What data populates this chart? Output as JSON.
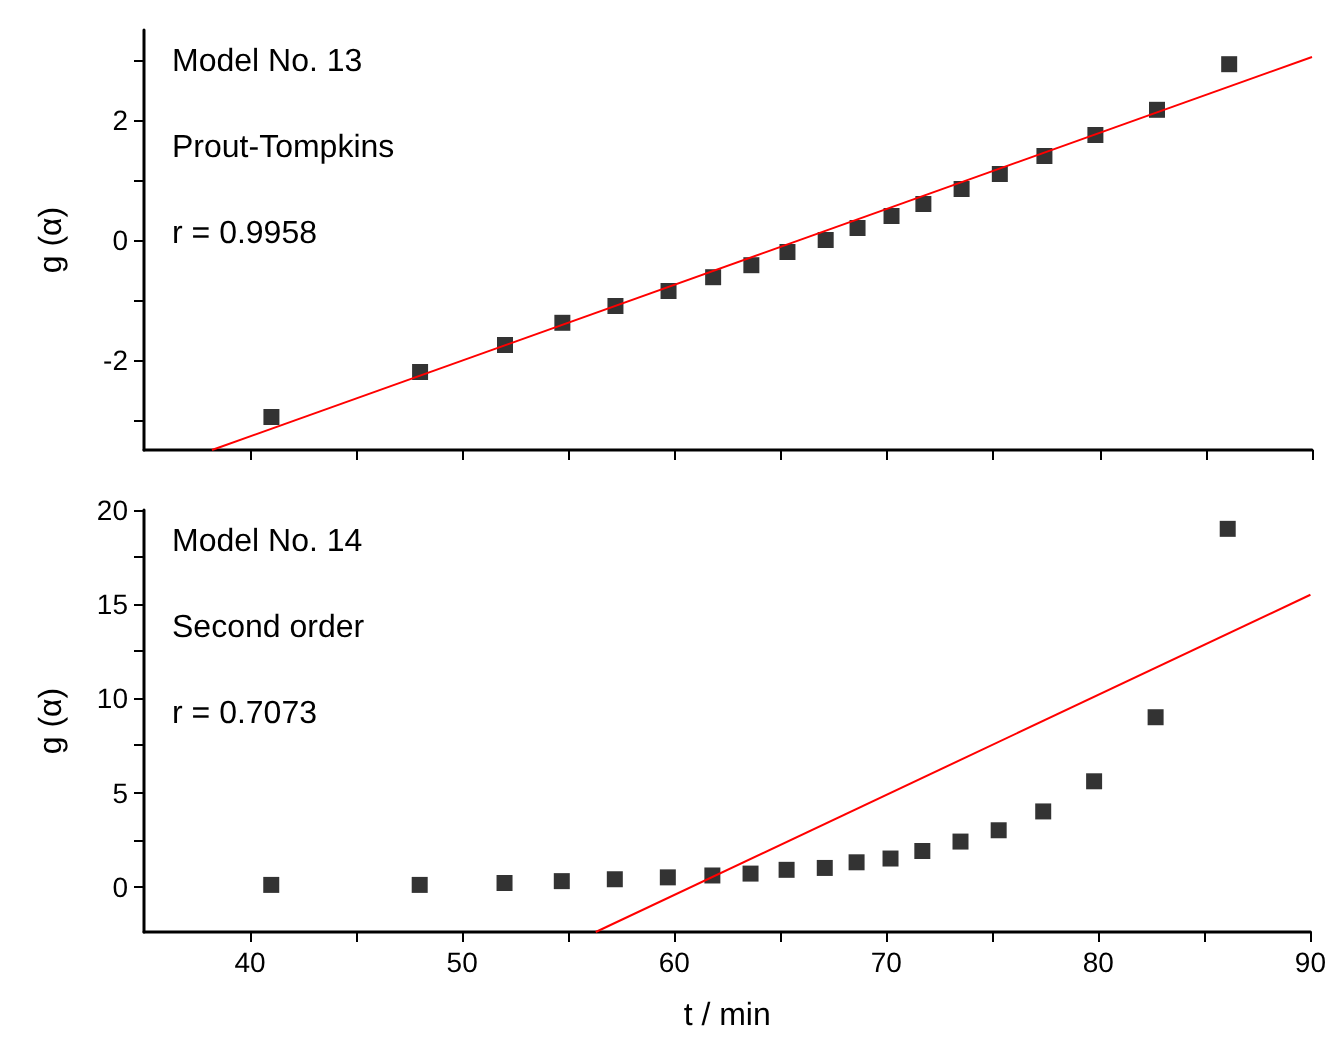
{
  "chart_data": [
    {
      "type": "scatter",
      "ylabel": "g (α)",
      "annotations": [
        "Model No. 13",
        "Prout-Tompkins",
        "r = 0.9958"
      ],
      "marker": "square",
      "tick_labels": "y",
      "xlim": [
        35,
        90
      ],
      "xticks": [
        40,
        {
          "value": 45,
          "label": null
        },
        50,
        {
          "value": 55,
          "label": null
        },
        60,
        {
          "value": 65,
          "label": null
        },
        70,
        {
          "value": 75,
          "label": null
        },
        80,
        {
          "value": 85,
          "label": null
        },
        90
      ],
      "ylim": [
        -3.5,
        3.5
      ],
      "yticks": [
        {
          "value": -3,
          "label": null
        },
        -2,
        {
          "value": -1,
          "label": null
        },
        0,
        {
          "value": 1,
          "label": null
        },
        2,
        {
          "value": 3,
          "label": null
        }
      ],
      "x": [
        41,
        48,
        52,
        54.7,
        57.2,
        59.7,
        61.8,
        63.6,
        65.3,
        67.1,
        68.6,
        70.2,
        71.7,
        73.5,
        75.3,
        77.4,
        79.8,
        82.7,
        86.1
      ],
      "series": [
        {
          "color": "#000000",
          "values": [
            -2.95,
            -2.2,
            -1.75,
            -1.38,
            -1.1,
            -0.85,
            -0.62,
            -0.42,
            -0.2,
            0,
            0.2,
            0.4,
            0.6,
            0.85,
            1.1,
            1.4,
            1.75,
            2.17,
            2.93
          ]
        },
        {
          "type": "line",
          "marker": "none",
          "color": "#ff0000",
          "x": [
            38.2,
            90
          ],
          "values": [
            -3.5,
            3.05
          ]
        }
      ]
    },
    {
      "type": "scatter",
      "xlabel": "t / min",
      "ylabel": "g (α)",
      "annotations": [
        "Model No. 14",
        "Second order",
        "r = 0.7073"
      ],
      "marker": "square",
      "xlim": [
        35,
        90
      ],
      "xticks": [
        40,
        {
          "value": 45,
          "label": null
        },
        50,
        {
          "value": 55,
          "label": null
        },
        60,
        {
          "value": 65,
          "label": null
        },
        70,
        {
          "value": 75,
          "label": null
        },
        80,
        {
          "value": 85,
          "label": null
        },
        90
      ],
      "ylim": [
        -2.4,
        20
      ],
      "yticks": [
        0,
        {
          "value": 2.5,
          "label": null
        },
        5,
        {
          "value": 7.5,
          "label": null
        },
        10,
        {
          "value": 12.5,
          "label": null
        },
        15,
        {
          "value": 17.5,
          "label": null
        },
        20
      ],
      "x": [
        41,
        48,
        52,
        54.7,
        57.2,
        59.7,
        61.8,
        63.6,
        65.3,
        67.1,
        68.6,
        70.2,
        71.7,
        73.5,
        75.3,
        77.4,
        79.8,
        82.7,
        86.1
      ],
      "series": [
        {
          "color": "#000000",
          "values": [
            0.1,
            0.1,
            0.2,
            0.3,
            0.4,
            0.5,
            0.6,
            0.7,
            0.9,
            1.0,
            1.3,
            1.5,
            1.9,
            2.4,
            3.0,
            4.0,
            5.6,
            9.0,
            19.0
          ]
        },
        {
          "type": "line",
          "marker": "none",
          "color": "#ff0000",
          "x": [
            56.3,
            90
          ],
          "values": [
            -2.4,
            15.5
          ]
        }
      ]
    }
  ]
}
